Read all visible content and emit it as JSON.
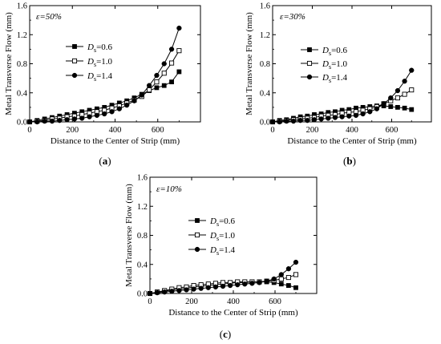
{
  "chart_data": [
    {
      "type": "line",
      "panel_label": "(a)",
      "strain_label": "ε=50%",
      "xlabel": "Distance to the Center of Strip (mm)",
      "ylabel": "Metal Transverse Flow (mm)",
      "xlim": [
        0,
        800
      ],
      "ylim": [
        0,
        1.6
      ],
      "xticks": [
        0,
        200,
        400,
        600
      ],
      "yticks": [
        0.0,
        0.4,
        0.8,
        1.2,
        1.6
      ],
      "grid": false,
      "legend_position": "upper-left",
      "series": [
        {
          "name": "Ds=0.6",
          "marker": "filled-square",
          "x": [
            0,
            35,
            70,
            105,
            140,
            175,
            210,
            245,
            280,
            315,
            350,
            385,
            420,
            455,
            490,
            525,
            560,
            595,
            630,
            665,
            700
          ],
          "y": [
            0.0,
            0.02,
            0.04,
            0.06,
            0.08,
            0.1,
            0.12,
            0.14,
            0.16,
            0.18,
            0.2,
            0.23,
            0.26,
            0.29,
            0.33,
            0.38,
            0.43,
            0.47,
            0.5,
            0.55,
            0.69
          ]
        },
        {
          "name": "Ds=1.0",
          "marker": "open-square",
          "x": [
            0,
            35,
            70,
            105,
            140,
            175,
            210,
            245,
            280,
            315,
            350,
            385,
            420,
            455,
            490,
            525,
            560,
            595,
            630,
            665,
            700
          ],
          "y": [
            0.0,
            0.01,
            0.02,
            0.04,
            0.05,
            0.07,
            0.08,
            0.1,
            0.12,
            0.14,
            0.16,
            0.19,
            0.22,
            0.26,
            0.3,
            0.35,
            0.44,
            0.55,
            0.67,
            0.81,
            0.98
          ]
        },
        {
          "name": "Ds=1.4",
          "marker": "filled-circle",
          "x": [
            0,
            35,
            70,
            105,
            140,
            175,
            210,
            245,
            280,
            315,
            350,
            385,
            420,
            455,
            490,
            525,
            560,
            595,
            630,
            665,
            700
          ],
          "y": [
            0.0,
            0.0,
            0.01,
            0.01,
            0.02,
            0.03,
            0.04,
            0.05,
            0.07,
            0.09,
            0.11,
            0.14,
            0.18,
            0.23,
            0.29,
            0.37,
            0.5,
            0.64,
            0.8,
            1.0,
            1.29
          ]
        }
      ]
    },
    {
      "type": "line",
      "panel_label": "(b)",
      "strain_label": "ε=30%",
      "xlabel": "Distance to the Center of Strip (mm)",
      "ylabel": "Metal Transverse Flow (mm)",
      "xlim": [
        0,
        800
      ],
      "ylim": [
        0,
        1.6
      ],
      "xticks": [
        0,
        200,
        400,
        600
      ],
      "yticks": [
        0.0,
        0.4,
        0.8,
        1.2,
        1.6
      ],
      "grid": false,
      "legend_position": "upper-left",
      "series": [
        {
          "name": "Ds=0.6",
          "marker": "filled-square",
          "x": [
            0,
            35,
            70,
            105,
            140,
            175,
            210,
            245,
            280,
            315,
            350,
            385,
            420,
            455,
            490,
            525,
            560,
            595,
            630,
            665,
            700
          ],
          "y": [
            0.0,
            0.02,
            0.03,
            0.05,
            0.07,
            0.08,
            0.1,
            0.11,
            0.13,
            0.14,
            0.16,
            0.17,
            0.19,
            0.2,
            0.21,
            0.22,
            0.22,
            0.21,
            0.2,
            0.19,
            0.17
          ]
        },
        {
          "name": "Ds=1.0",
          "marker": "open-square",
          "x": [
            0,
            35,
            70,
            105,
            140,
            175,
            210,
            245,
            280,
            315,
            350,
            385,
            420,
            455,
            490,
            525,
            560,
            595,
            630,
            665,
            700
          ],
          "y": [
            0.0,
            0.01,
            0.02,
            0.03,
            0.04,
            0.05,
            0.06,
            0.08,
            0.09,
            0.1,
            0.12,
            0.13,
            0.14,
            0.16,
            0.18,
            0.21,
            0.25,
            0.29,
            0.33,
            0.38,
            0.44
          ]
        },
        {
          "name": "Ds=1.4",
          "marker": "filled-circle",
          "x": [
            0,
            35,
            70,
            105,
            140,
            175,
            210,
            245,
            280,
            315,
            350,
            385,
            420,
            455,
            490,
            525,
            560,
            595,
            630,
            665,
            700
          ],
          "y": [
            0.0,
            0.0,
            0.01,
            0.01,
            0.02,
            0.02,
            0.03,
            0.04,
            0.05,
            0.06,
            0.07,
            0.08,
            0.09,
            0.11,
            0.14,
            0.18,
            0.25,
            0.33,
            0.43,
            0.56,
            0.71
          ]
        }
      ]
    },
    {
      "type": "line",
      "panel_label": "(c)",
      "strain_label": "ε=10%",
      "xlabel": "Distance to the Center of Strip (mm)",
      "ylabel": "Metal Transverse Flow (mm)",
      "xlim": [
        0,
        800
      ],
      "ylim": [
        0,
        1.6
      ],
      "xticks": [
        0,
        200,
        400,
        600
      ],
      "yticks": [
        0.0,
        0.4,
        0.8,
        1.2,
        1.6
      ],
      "grid": false,
      "legend_position": "center-left",
      "series": [
        {
          "name": "Ds=0.6",
          "marker": "filled-square",
          "x": [
            0,
            35,
            70,
            105,
            140,
            175,
            210,
            245,
            280,
            315,
            350,
            385,
            420,
            455,
            490,
            525,
            560,
            595,
            630,
            665,
            700
          ],
          "y": [
            0.0,
            0.02,
            0.03,
            0.05,
            0.06,
            0.07,
            0.09,
            0.1,
            0.11,
            0.12,
            0.13,
            0.14,
            0.15,
            0.15,
            0.16,
            0.16,
            0.16,
            0.15,
            0.13,
            0.11,
            0.08
          ]
        },
        {
          "name": "Ds=1.0",
          "marker": "open-square",
          "x": [
            0,
            35,
            70,
            105,
            140,
            175,
            210,
            245,
            280,
            315,
            350,
            385,
            420,
            455,
            490,
            525,
            560,
            595,
            630,
            665,
            700
          ],
          "y": [
            0.0,
            0.02,
            0.04,
            0.06,
            0.08,
            0.09,
            0.11,
            0.12,
            0.13,
            0.14,
            0.15,
            0.15,
            0.16,
            0.16,
            0.16,
            0.16,
            0.17,
            0.18,
            0.2,
            0.22,
            0.26
          ]
        },
        {
          "name": "Ds=1.4",
          "marker": "filled-circle",
          "x": [
            0,
            35,
            70,
            105,
            140,
            175,
            210,
            245,
            280,
            315,
            350,
            385,
            420,
            455,
            490,
            525,
            560,
            595,
            630,
            665,
            700
          ],
          "y": [
            0.0,
            0.01,
            0.02,
            0.03,
            0.04,
            0.05,
            0.06,
            0.07,
            0.08,
            0.09,
            0.1,
            0.11,
            0.12,
            0.13,
            0.14,
            0.15,
            0.17,
            0.2,
            0.26,
            0.34,
            0.43
          ]
        }
      ]
    }
  ]
}
